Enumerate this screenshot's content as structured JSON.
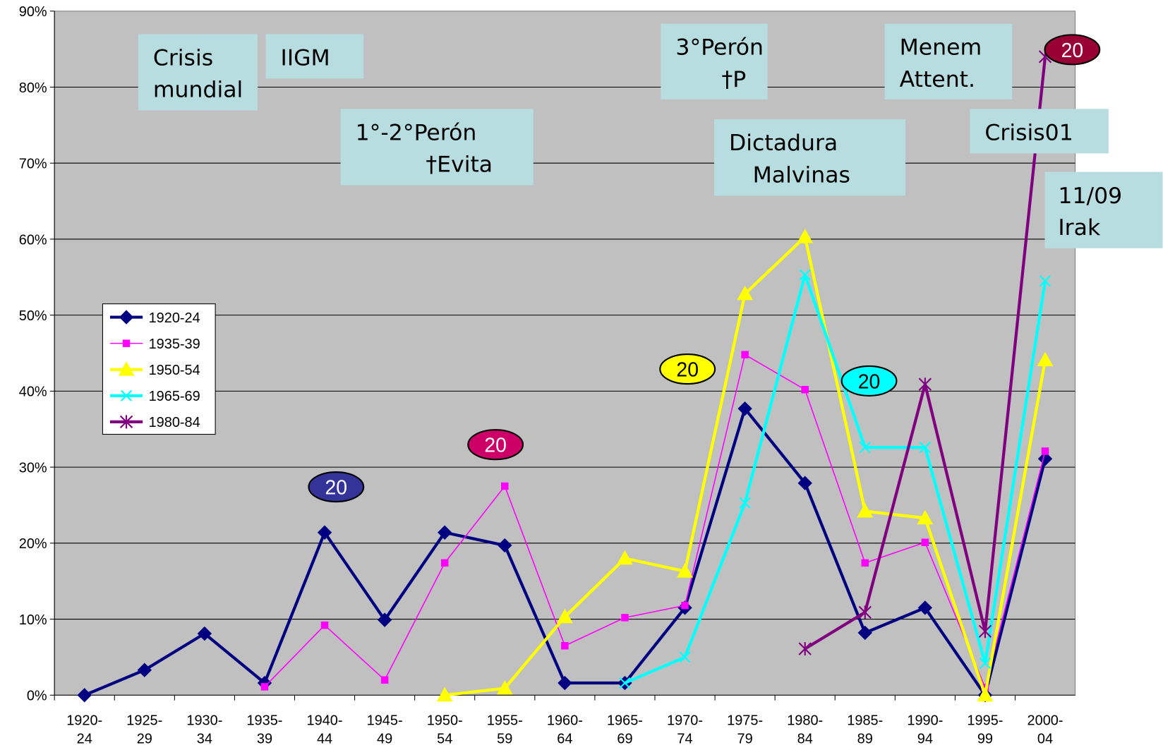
{
  "chart_data": {
    "type": "line",
    "categories": [
      "1920-24",
      "1925-29",
      "1930-34",
      "1935-39",
      "1940-44",
      "1945-49",
      "1950-54",
      "1955-59",
      "1960-64",
      "1965-69",
      "1970-74",
      "1975-79",
      "1980-84",
      "1985-89",
      "1990-94",
      "1995-99",
      "2000-04"
    ],
    "ylim": [
      0,
      90
    ],
    "yticks": [
      {
        "value": 0,
        "label": "0%"
      },
      {
        "value": 10,
        "label": "10%"
      },
      {
        "value": 20,
        "label": "20%"
      },
      {
        "value": 30,
        "label": "30%"
      },
      {
        "value": 40,
        "label": "40%"
      },
      {
        "value": 50,
        "label": "50%"
      },
      {
        "value": 60,
        "label": "60%"
      },
      {
        "value": 70,
        "label": "70%"
      },
      {
        "value": 80,
        "label": "80%"
      },
      {
        "value": 90,
        "label": "90%"
      }
    ],
    "grid": true,
    "series": [
      {
        "name": "1920-24",
        "color": "#000080",
        "marker": "diamond",
        "values": [
          0,
          3.3,
          8.1,
          1.6,
          21.4,
          9.9,
          21.4,
          19.7,
          1.6,
          1.6,
          11.5,
          37.7,
          27.9,
          8.2,
          11.5,
          0,
          31.1
        ]
      },
      {
        "name": "1935-39",
        "color": "#ff00ff",
        "marker": "square",
        "values": [
          null,
          null,
          null,
          1.1,
          9.2,
          2.0,
          17.4,
          27.5,
          6.5,
          10.2,
          11.8,
          44.8,
          40.2,
          17.4,
          20.1,
          1.0,
          32.1
        ]
      },
      {
        "name": "1950-54",
        "color": "#ffff00",
        "marker": "triangle",
        "values": [
          null,
          null,
          null,
          null,
          null,
          null,
          0,
          0.9,
          10.3,
          18.0,
          16.3,
          52.8,
          60.3,
          24.2,
          23.3,
          0,
          44.1
        ]
      },
      {
        "name": "1965-69",
        "color": "#00ffff",
        "marker": "x",
        "values": [
          null,
          null,
          null,
          null,
          null,
          null,
          null,
          null,
          null,
          1.6,
          5.0,
          25.3,
          55.3,
          32.6,
          32.6,
          4.2,
          54.5
        ]
      },
      {
        "name": "1980-84",
        "color": "#800080",
        "marker": "star",
        "values": [
          null,
          null,
          null,
          null,
          null,
          null,
          null,
          null,
          null,
          null,
          null,
          null,
          6.1,
          10.9,
          40.9,
          8.4,
          84.0
        ]
      }
    ],
    "annotations": [
      {
        "lines": [
          "Crisis",
          "mundial"
        ]
      },
      {
        "lines": [
          "IIGM"
        ]
      },
      {
        "lines": [
          "1°-2°Perón",
          "†Evita"
        ]
      },
      {
        "lines": [
          "3°Perón",
          "†P"
        ]
      },
      {
        "lines": [
          "Menem",
          "Attent."
        ]
      },
      {
        "lines": [
          "Dictadura",
          "Malvinas"
        ]
      },
      {
        "lines": [
          "Crisis01"
        ]
      },
      {
        "lines": [
          "11/09",
          "Irak"
        ]
      }
    ],
    "badges": [
      {
        "text": "20",
        "color": "#333399"
      },
      {
        "text": "20",
        "color": "#cc0066"
      },
      {
        "text": "20",
        "color": "#ffff00"
      },
      {
        "text": "20",
        "color": "#00ffff"
      },
      {
        "text": "20",
        "color": "#990033"
      }
    ]
  }
}
